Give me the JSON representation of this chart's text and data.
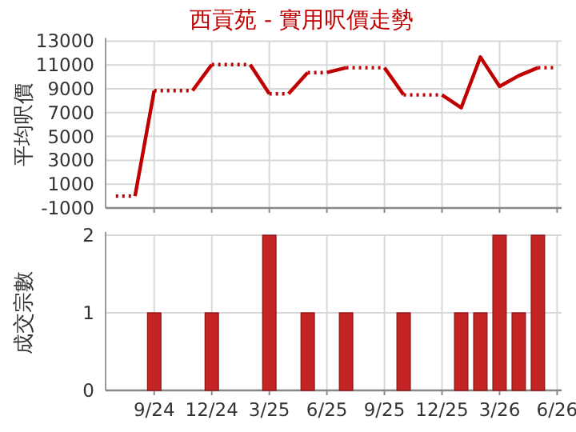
{
  "chart_data": [
    {
      "type": "line",
      "title": "西貢苑 - 實用呎價走勢",
      "ylabel": "平均呎價",
      "marker": "none",
      "grid": true,
      "tick_labels": "y",
      "xlim": [
        "2024-06-15",
        "2026-06-08"
      ],
      "ylim": [
        -1000,
        13000
      ],
      "yticks": [
        -1000,
        1000,
        3000,
        5000,
        7000,
        9000,
        11000,
        13000
      ],
      "xticks": [
        {
          "value": "2024-09",
          "label": null
        },
        {
          "value": "2024-12",
          "label": null
        },
        {
          "value": "2025-03",
          "label": null
        },
        {
          "value": "2025-06",
          "label": null
        },
        {
          "value": "2025-09",
          "label": null
        },
        {
          "value": "2025-12",
          "label": null
        },
        {
          "value": "2026-03",
          "label": null
        },
        {
          "value": "2026-06",
          "label": null
        }
      ],
      "series": [
        {
          "x": [
            "2024-07",
            "2024-08"
          ],
          "values": [
            0,
            0
          ],
          "color": "#c00000",
          "line_style": "dotted"
        },
        {
          "x": [
            "2024-08",
            "2024-09"
          ],
          "values": [
            0,
            8850
          ],
          "color": "#c00000",
          "line_style": "solid"
        },
        {
          "x": [
            "2024-09",
            "2024-11"
          ],
          "values": [
            8850,
            8850
          ],
          "color": "#c00000",
          "line_style": "dotted"
        },
        {
          "x": [
            "2024-11",
            "2024-12"
          ],
          "values": [
            8850,
            11030
          ],
          "color": "#c00000",
          "line_style": "solid"
        },
        {
          "x": [
            "2024-12",
            "2025-02"
          ],
          "values": [
            11030,
            11030
          ],
          "color": "#c00000",
          "line_style": "dotted"
        },
        {
          "x": [
            "2025-02",
            "2025-03"
          ],
          "values": [
            11030,
            8580
          ],
          "color": "#c00000",
          "line_style": "solid"
        },
        {
          "x": [
            "2025-03",
            "2025-04"
          ],
          "values": [
            8580,
            8580
          ],
          "color": "#c00000",
          "line_style": "dotted"
        },
        {
          "x": [
            "2025-04",
            "2025-05"
          ],
          "values": [
            8580,
            10360
          ],
          "color": "#c00000",
          "line_style": "solid"
        },
        {
          "x": [
            "2025-05",
            "2025-06"
          ],
          "values": [
            10360,
            10360
          ],
          "color": "#c00000",
          "line_style": "dotted"
        },
        {
          "x": [
            "2025-06",
            "2025-07"
          ],
          "values": [
            10360,
            10770
          ],
          "color": "#c00000",
          "line_style": "solid"
        },
        {
          "x": [
            "2025-07",
            "2025-09"
          ],
          "values": [
            10770,
            10770
          ],
          "color": "#c00000",
          "line_style": "dotted"
        },
        {
          "x": [
            "2025-09",
            "2025-10"
          ],
          "values": [
            10770,
            8490
          ],
          "color": "#c00000",
          "line_style": "solid"
        },
        {
          "x": [
            "2025-10",
            "2025-12"
          ],
          "values": [
            8490,
            8490
          ],
          "color": "#c00000",
          "line_style": "dotted"
        },
        {
          "x": [
            "2025-12",
            "2026-01",
            "2026-02",
            "2026-03",
            "2026-04",
            "2026-05"
          ],
          "values": [
            8490,
            7410,
            11660,
            9200,
            10100,
            10770
          ],
          "color": "#c00000",
          "line_style": "solid"
        },
        {
          "x": [
            "2026-05",
            "2026-06"
          ],
          "values": [
            10770,
            10770
          ],
          "color": "#c00000",
          "line_style": "dotted"
        }
      ]
    },
    {
      "type": "bar",
      "ylabel": "成交宗數",
      "grid": true,
      "xlim": [
        "2024-06-15",
        "2026-06-08"
      ],
      "ylim": [
        0,
        2
      ],
      "yticks": [
        0,
        1,
        2
      ],
      "xticks": [
        {
          "value": "2024-09",
          "label": "9/24"
        },
        {
          "value": "2024-12",
          "label": "12/24"
        },
        {
          "value": "2025-03",
          "label": "3/25"
        },
        {
          "value": "2025-06",
          "label": "6/25"
        },
        {
          "value": "2025-09",
          "label": "9/25"
        },
        {
          "value": "2025-12",
          "label": "12/25"
        },
        {
          "value": "2026-03",
          "label": "3/26"
        },
        {
          "value": "2026-06",
          "label": "6/26"
        }
      ],
      "x": [
        "2024-09",
        "2024-12",
        "2025-03",
        "2025-05",
        "2025-07",
        "2025-10",
        "2026-01",
        "2026-02",
        "2026-03",
        "2026-04",
        "2026-05"
      ],
      "values": [
        1,
        1,
        2,
        1,
        1,
        1,
        1,
        1,
        2,
        1,
        2
      ],
      "color": "#c42424"
    }
  ]
}
